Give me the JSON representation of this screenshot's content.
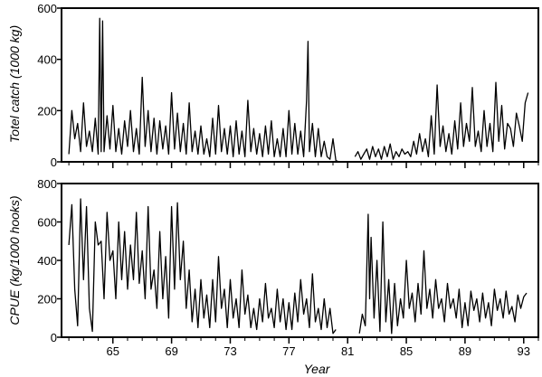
{
  "chart_data": [
    {
      "type": "line",
      "ylabel": "Totel catch (1000 kg)",
      "xlabel": "",
      "ylim": [
        0,
        600
      ],
      "xlim": [
        1961.5,
        1994
      ],
      "yticks": [
        0,
        200,
        400,
        600
      ],
      "xticks": [
        65,
        69,
        73,
        77,
        81,
        85,
        89,
        93
      ],
      "grid": false,
      "series": [
        {
          "x": [
            1962.0,
            1962.2,
            1962.4,
            1962.6,
            1962.8,
            1963.0,
            1963.2,
            1963.4,
            1963.6,
            1963.8,
            1964.0,
            1964.1,
            1964.2,
            1964.3,
            1964.4,
            1964.6,
            1964.8,
            1965.0,
            1965.2,
            1965.4,
            1965.6,
            1965.8,
            1966.0,
            1966.2,
            1966.4,
            1966.6,
            1966.8,
            1967.0,
            1967.2,
            1967.4,
            1967.6,
            1967.8,
            1968.0,
            1968.2,
            1968.4,
            1968.6,
            1968.8,
            1969.0,
            1969.2,
            1969.4,
            1969.6,
            1969.8,
            1970.0,
            1970.2,
            1970.4,
            1970.6,
            1970.8,
            1971.0,
            1971.2,
            1971.4,
            1971.6,
            1971.8,
            1972.0,
            1972.2,
            1972.4,
            1972.6,
            1972.8,
            1973.0,
            1973.2,
            1973.4,
            1973.6,
            1973.8,
            1974.0,
            1974.2,
            1974.4,
            1974.6,
            1974.8,
            1975.0,
            1975.2,
            1975.4,
            1975.6,
            1975.8,
            1976.0,
            1976.2,
            1976.4,
            1976.6,
            1976.8,
            1977.0,
            1977.2,
            1977.4,
            1977.6,
            1977.8,
            1978.0,
            1978.2,
            1978.3,
            1978.4,
            1978.6,
            1978.8,
            1979.0,
            1979.2,
            1979.4,
            1979.6,
            1979.8,
            1980.0,
            1980.2,
            1980.4
          ],
          "values": [
            30,
            200,
            90,
            150,
            40,
            230,
            60,
            120,
            40,
            170,
            30,
            560,
            40,
            550,
            40,
            180,
            50,
            220,
            40,
            130,
            30,
            160,
            60,
            200,
            40,
            130,
            30,
            330,
            60,
            200,
            40,
            170,
            30,
            160,
            50,
            140,
            30,
            270,
            50,
            190,
            40,
            150,
            30,
            230,
            40,
            120,
            30,
            140,
            30,
            90,
            20,
            170,
            30,
            220,
            40,
            130,
            30,
            140,
            20,
            160,
            30,
            120,
            20,
            240,
            40,
            130,
            30,
            110,
            20,
            140,
            30,
            160,
            20,
            90,
            20,
            130,
            20,
            200,
            30,
            150,
            30,
            120,
            20,
            240,
            470,
            40,
            150,
            20,
            130,
            20,
            80,
            20,
            10,
            90,
            5,
            0
          ]
        },
        {
          "x": [
            1981.5,
            1981.7,
            1981.9,
            1982.1,
            1982.3,
            1982.5,
            1982.7,
            1982.9,
            1983.1,
            1983.3,
            1983.5,
            1983.7,
            1983.9,
            1984.1,
            1984.3,
            1984.5,
            1984.7,
            1984.9,
            1985.1,
            1985.3,
            1985.5,
            1985.7,
            1985.9,
            1986.1,
            1986.3,
            1986.5,
            1986.7,
            1986.9,
            1987.1,
            1987.3,
            1987.5,
            1987.7,
            1987.9,
            1988.1,
            1988.3,
            1988.5,
            1988.7,
            1988.9,
            1989.1,
            1989.3,
            1989.5,
            1989.7,
            1989.9,
            1990.1,
            1990.3,
            1990.5,
            1990.7,
            1990.9,
            1991.1,
            1991.3,
            1991.5,
            1991.7,
            1991.9,
            1992.1,
            1992.3,
            1992.5,
            1992.7,
            1992.9,
            1993.1,
            1993.3
          ],
          "values": [
            20,
            40,
            10,
            30,
            50,
            10,
            60,
            20,
            50,
            10,
            60,
            20,
            70,
            10,
            40,
            20,
            50,
            30,
            40,
            20,
            80,
            30,
            110,
            40,
            90,
            20,
            180,
            30,
            300,
            60,
            140,
            40,
            110,
            30,
            160,
            50,
            230,
            60,
            150,
            80,
            290,
            60,
            120,
            40,
            200,
            60,
            150,
            40,
            310,
            80,
            220,
            50,
            150,
            130,
            60,
            190,
            140,
            80,
            230,
            270
          ]
        }
      ]
    },
    {
      "type": "line",
      "ylabel": "CPUE (kg/1000 hooks)",
      "xlabel": "Year",
      "ylim": [
        0,
        800
      ],
      "xlim": [
        1961.5,
        1994
      ],
      "yticks": [
        0,
        200,
        400,
        600,
        800
      ],
      "xticks": [
        65,
        69,
        73,
        77,
        81,
        85,
        89,
        93
      ],
      "grid": false,
      "series": [
        {
          "x": [
            1962.0,
            1962.2,
            1962.4,
            1962.6,
            1962.8,
            1963.0,
            1963.2,
            1963.4,
            1963.6,
            1963.8,
            1964.0,
            1964.2,
            1964.4,
            1964.6,
            1964.8,
            1965.0,
            1965.2,
            1965.4,
            1965.6,
            1965.8,
            1966.0,
            1966.2,
            1966.4,
            1966.6,
            1966.8,
            1967.0,
            1967.2,
            1967.4,
            1967.6,
            1967.8,
            1968.0,
            1968.2,
            1968.4,
            1968.6,
            1968.8,
            1969.0,
            1969.2,
            1969.4,
            1969.6,
            1969.8,
            1970.0,
            1970.2,
            1970.4,
            1970.6,
            1970.8,
            1971.0,
            1971.2,
            1971.4,
            1971.6,
            1971.8,
            1972.0,
            1972.2,
            1972.4,
            1972.6,
            1972.8,
            1973.0,
            1973.2,
            1973.4,
            1973.6,
            1973.8,
            1974.0,
            1974.2,
            1974.4,
            1974.6,
            1974.8,
            1975.0,
            1975.2,
            1975.4,
            1975.6,
            1975.8,
            1976.0,
            1976.2,
            1976.4,
            1976.6,
            1976.8,
            1977.0,
            1977.2,
            1977.4,
            1977.6,
            1977.8,
            1978.0,
            1978.2,
            1978.4,
            1978.6,
            1978.8,
            1979.0,
            1979.2,
            1979.4,
            1979.6,
            1979.8,
            1980.0,
            1980.2
          ],
          "values": [
            480,
            690,
            250,
            60,
            720,
            300,
            680,
            150,
            30,
            600,
            480,
            500,
            200,
            650,
            400,
            450,
            200,
            600,
            300,
            550,
            250,
            480,
            300,
            650,
            280,
            450,
            200,
            680,
            250,
            350,
            150,
            550,
            200,
            420,
            100,
            680,
            250,
            700,
            300,
            500,
            150,
            350,
            80,
            250,
            50,
            300,
            100,
            220,
            50,
            300,
            80,
            420,
            150,
            250,
            50,
            300,
            100,
            200,
            50,
            350,
            120,
            220,
            50,
            150,
            40,
            200,
            80,
            280,
            100,
            150,
            50,
            250,
            80,
            200,
            40,
            180,
            40,
            230,
            80,
            300,
            120,
            200,
            50,
            330,
            80,
            150,
            40,
            200,
            50,
            150,
            20,
            40
          ]
        },
        {
          "x": [
            1981.8,
            1982.0,
            1982.2,
            1982.4,
            1982.5,
            1982.6,
            1982.8,
            1983.0,
            1983.2,
            1983.4,
            1983.6,
            1983.8,
            1984.0,
            1984.2,
            1984.4,
            1984.6,
            1984.8,
            1985.0,
            1985.2,
            1985.4,
            1985.6,
            1985.8,
            1986.0,
            1986.2,
            1986.4,
            1986.6,
            1986.8,
            1987.0,
            1987.2,
            1987.4,
            1987.6,
            1987.8,
            1988.0,
            1988.2,
            1988.4,
            1988.6,
            1988.8,
            1989.0,
            1989.2,
            1989.4,
            1989.6,
            1989.8,
            1990.0,
            1990.2,
            1990.4,
            1990.6,
            1990.8,
            1991.0,
            1991.2,
            1991.4,
            1991.6,
            1991.8,
            1992.0,
            1992.2,
            1992.4,
            1992.6,
            1992.8,
            1993.0,
            1993.2
          ],
          "values": [
            20,
            120,
            60,
            640,
            200,
            520,
            100,
            400,
            30,
            600,
            80,
            300,
            20,
            280,
            60,
            200,
            100,
            400,
            150,
            230,
            80,
            280,
            120,
            450,
            150,
            250,
            100,
            300,
            150,
            200,
            80,
            280,
            150,
            200,
            100,
            250,
            50,
            180,
            60,
            240,
            140,
            200,
            80,
            230,
            100,
            180,
            60,
            250,
            140,
            200,
            100,
            240,
            120,
            160,
            80,
            220,
            150,
            210,
            230
          ]
        }
      ]
    }
  ]
}
